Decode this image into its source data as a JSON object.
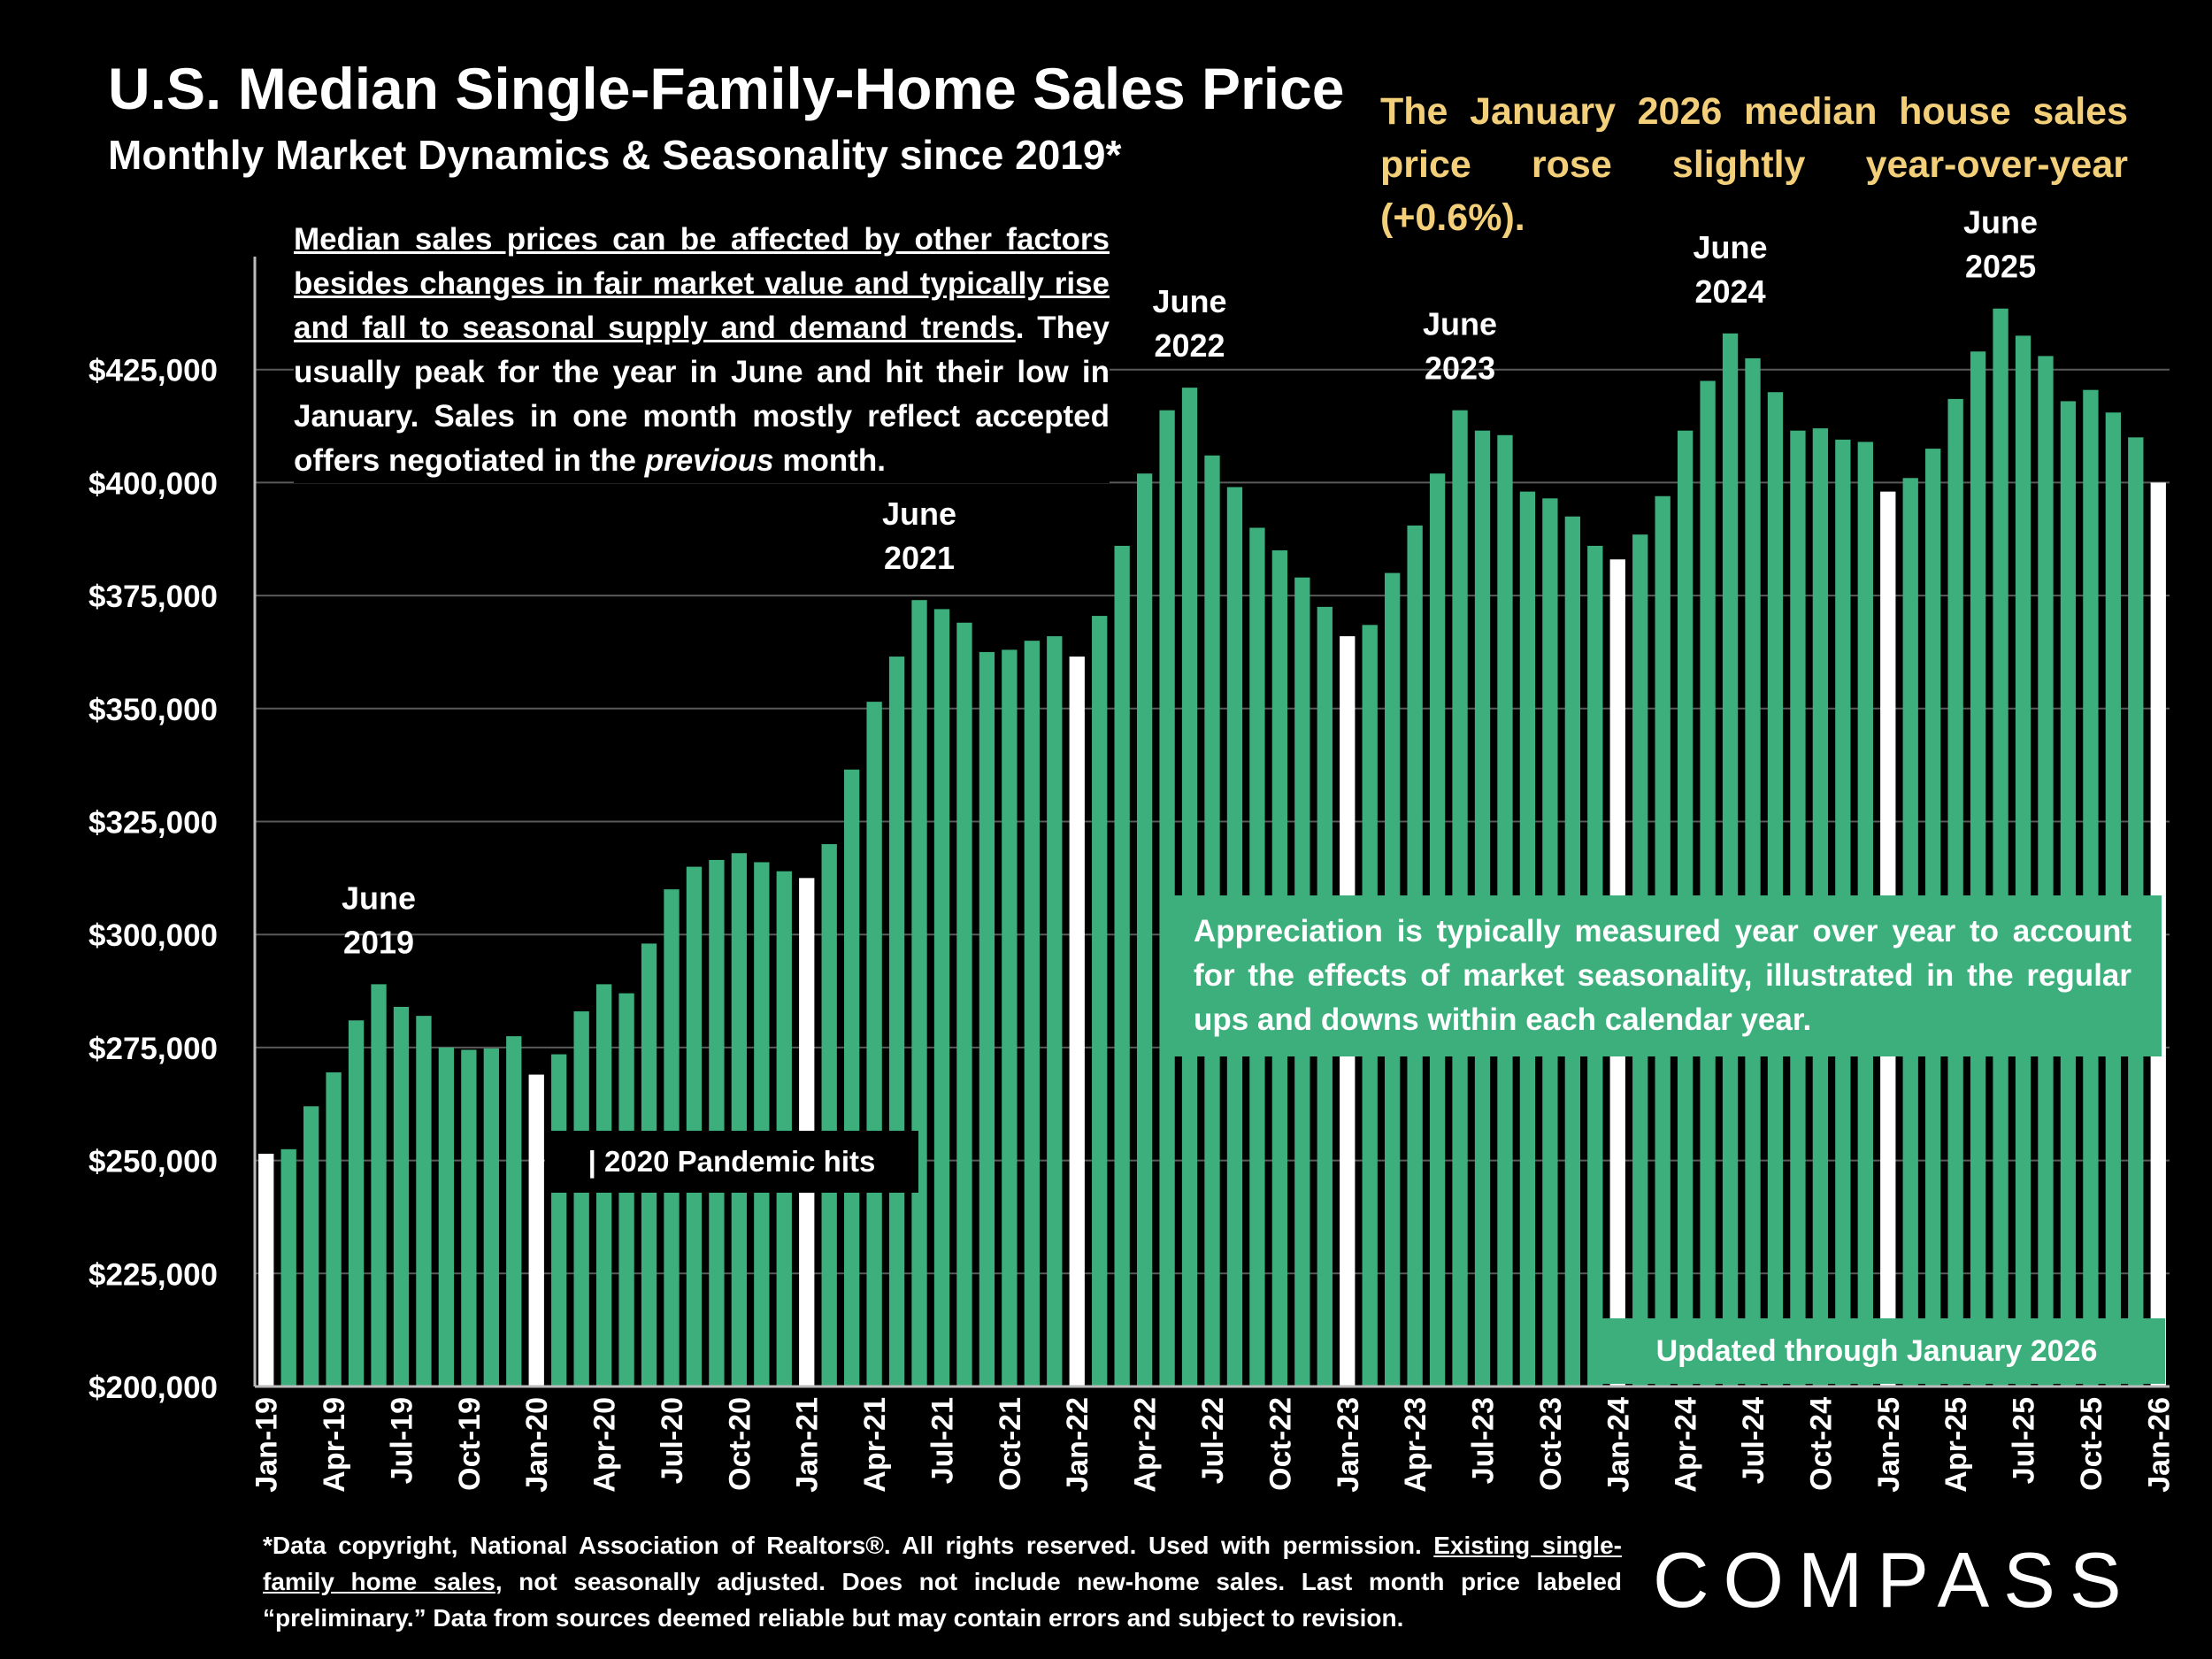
{
  "title": "U.S. Median Single-Family-Home Sales Price",
  "subtitle": "Monthly Market Dynamics & Seasonality since 2019*",
  "headline": "The January 2026 median house sales price rose slightly year-over-year (+0.6%).",
  "note": {
    "underlined": "Median sales prices can be affected by other factors besides changes in fair market value and typically rise and fall to seasonal supply and demand trends",
    "part2": ". They usually peak for the year in June and hit their low in January. Sales in one month mostly reflect accepted offers negotiated in the ",
    "italic": "previous",
    "part3": " month."
  },
  "appreciation_note": "Appreciation is typically measured year over year to account for the effects of market seasonality, illustrated in the regular ups and downs within each calendar year.",
  "pandemic_label": "| 2020 Pandemic hits",
  "updated_label": "Updated through January 2026",
  "footnote": {
    "part1": "*Data copyright, National Association of Realtors®. All rights reserved. Used with permission. ",
    "underlined": "Existing single-family home sales",
    "part2": ", not seasonally adjusted. Does not include new-home sales. Last month price labeled “preliminary.” Data from sources deemed reliable but may contain errors and subject to revision."
  },
  "logo": "COMPASS",
  "colors": {
    "bar": "#3daf7c",
    "january_bar": "#ffffff",
    "headline": "#f3cf7a",
    "background": "#000000"
  },
  "chart_data": {
    "type": "bar",
    "ylim": [
      200000,
      450000
    ],
    "yticks": [
      {
        "value": 200000,
        "label": "$200,000"
      },
      {
        "value": 225000,
        "label": "$225,000"
      },
      {
        "value": 250000,
        "label": "$250,000"
      },
      {
        "value": 275000,
        "label": "$275,000"
      },
      {
        "value": 300000,
        "label": "$300,000"
      },
      {
        "value": 325000,
        "label": "$325,000"
      },
      {
        "value": 350000,
        "label": "$350,000"
      },
      {
        "value": 375000,
        "label": "$375,000"
      },
      {
        "value": 400000,
        "label": "$400,000"
      },
      {
        "value": 425000,
        "label": "$425,000"
      }
    ],
    "grid": true,
    "highlight": "January bars white, other months green",
    "categories": [
      "Jan-19",
      "Feb-19",
      "Mar-19",
      "Apr-19",
      "May-19",
      "Jun-19",
      "Jul-19",
      "Aug-19",
      "Sep-19",
      "Oct-19",
      "Nov-19",
      "Dec-19",
      "Jan-20",
      "Feb-20",
      "Mar-20",
      "Apr-20",
      "May-20",
      "Jun-20",
      "Jul-20",
      "Aug-20",
      "Sep-20",
      "Oct-20",
      "Nov-20",
      "Dec-20",
      "Jan-21",
      "Feb-21",
      "Mar-21",
      "Apr-21",
      "May-21",
      "Jun-21",
      "Jul-21",
      "Aug-21",
      "Sep-21",
      "Oct-21",
      "Nov-21",
      "Dec-21",
      "Jan-22",
      "Feb-22",
      "Mar-22",
      "Apr-22",
      "May-22",
      "Jun-22",
      "Jul-22",
      "Aug-22",
      "Sep-22",
      "Oct-22",
      "Nov-22",
      "Dec-22",
      "Jan-23",
      "Feb-23",
      "Mar-23",
      "Apr-23",
      "May-23",
      "Jun-23",
      "Jul-23",
      "Aug-23",
      "Sep-23",
      "Oct-23",
      "Nov-23",
      "Dec-23",
      "Jan-24",
      "Feb-24",
      "Mar-24",
      "Apr-24",
      "May-24",
      "Jun-24",
      "Jul-24",
      "Aug-24",
      "Sep-24",
      "Oct-24",
      "Nov-24",
      "Dec-24",
      "Jan-25",
      "Feb-25",
      "Mar-25",
      "Apr-25",
      "May-25",
      "Jun-25",
      "Jul-25",
      "Aug-25",
      "Sep-25",
      "Oct-25",
      "Nov-25",
      "Dec-25",
      "Jan-26"
    ],
    "values": [
      251500,
      252500,
      262000,
      269500,
      281000,
      289000,
      284000,
      282000,
      275000,
      274500,
      274800,
      277500,
      269000,
      273500,
      283000,
      289000,
      287000,
      298000,
      310000,
      315000,
      316500,
      318000,
      316000,
      314000,
      312500,
      320000,
      336500,
      351500,
      361500,
      374000,
      372000,
      369000,
      362500,
      363000,
      365000,
      366000,
      361500,
      370500,
      386000,
      402000,
      416000,
      421000,
      406000,
      399000,
      390000,
      385000,
      379000,
      372500,
      366000,
      368500,
      380000,
      390500,
      402000,
      416000,
      411500,
      410500,
      398000,
      396500,
      392500,
      386000,
      383000,
      388500,
      397000,
      411500,
      422500,
      433000,
      427500,
      420000,
      411500,
      412000,
      409500,
      409000,
      398000,
      401000,
      407500,
      418500,
      429000,
      438500,
      432500,
      428000,
      418000,
      420500,
      415500,
      410000,
      400000
    ],
    "tick_labels": [
      "Jan-19",
      "Apr-19",
      "Jul-19",
      "Oct-19",
      "Jan-20",
      "Apr-20",
      "Jul-20",
      "Oct-20",
      "Jan-21",
      "Apr-21",
      "Jul-21",
      "Oct-21",
      "Jan-22",
      "Apr-22",
      "Jul-22",
      "Oct-22",
      "Jan-23",
      "Apr-23",
      "Jul-23",
      "Oct-23",
      "Jan-24",
      "Apr-24",
      "Jul-24",
      "Oct-24",
      "Jan-25",
      "Apr-25",
      "Jul-25",
      "Oct-25",
      "Jan-26"
    ],
    "annotations": [
      {
        "category": "Jun-19",
        "line1": "June",
        "line2": "2019"
      },
      {
        "category": "Jun-21",
        "line1": "June",
        "line2": "2021"
      },
      {
        "category": "Jun-22",
        "line1": "June",
        "line2": "2022"
      },
      {
        "category": "Jun-23",
        "line1": "June",
        "line2": "2023"
      },
      {
        "category": "Jun-24",
        "line1": "June",
        "line2": "2024"
      },
      {
        "category": "Jun-25",
        "line1": "June",
        "line2": "2025"
      }
    ]
  }
}
